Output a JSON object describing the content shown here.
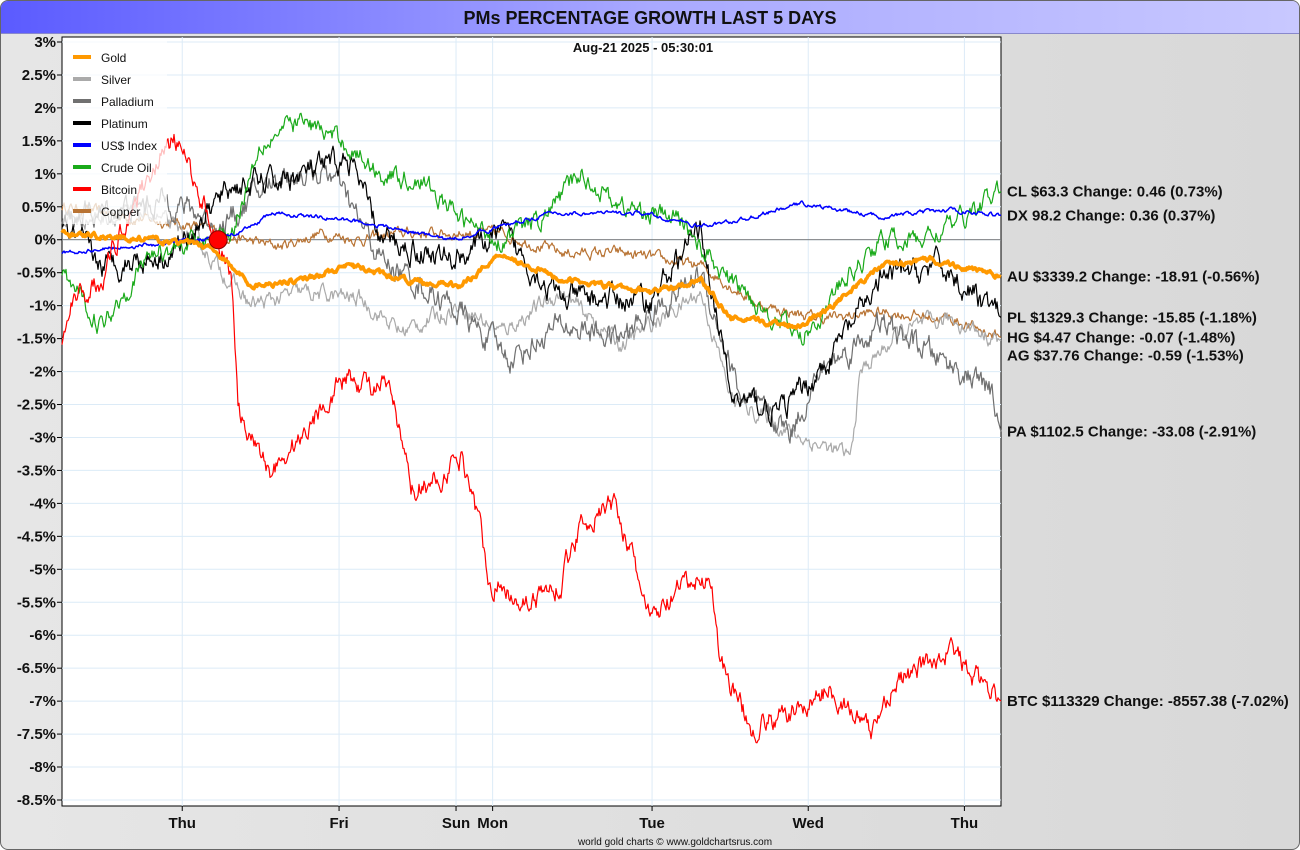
{
  "chart_data": {
    "type": "line",
    "title": "PMs PERCENTAGE GROWTH LAST 5 DAYS",
    "timestamp": "Aug-21  2025 - 05:30:01",
    "footer": "world gold charts © www.goldchartsrus.com",
    "xlabel": "",
    "ylabel": "",
    "x_units": "hours",
    "xlim": [
      0,
      143.7
    ],
    "ylim": [
      -8.5,
      3
    ],
    "grid": true,
    "legend_position": "top-left",
    "x_ticks": [
      {
        "label": "Thu",
        "x": 18.4
      },
      {
        "label": "Fri",
        "x": 42.4
      },
      {
        "label": "Sun",
        "x": 60.3
      },
      {
        "label": "Mon",
        "x": 65.9
      },
      {
        "label": "Tue",
        "x": 90.3
      },
      {
        "label": "Wed",
        "x": 114.2
      },
      {
        "label": "Thu",
        "x": 138.1
      }
    ],
    "y_ticks": [
      "3%",
      "2.5%",
      "2%",
      "1.5%",
      "1%",
      "0.5%",
      "0%",
      "-0.5%",
      "-1%",
      "-1.5%",
      "-2%",
      "-2.5%",
      "-3%",
      "-3.5%",
      "-4%",
      "-4.5%",
      "-5%",
      "-5.5%",
      "-6%",
      "-6.5%",
      "-7%",
      "-7.5%",
      "-8%",
      "-8.5%"
    ],
    "y_tick_values": [
      3,
      2.5,
      2,
      1.5,
      1,
      0.5,
      0,
      -0.5,
      -1,
      -1.5,
      -2,
      -2.5,
      -3,
      -3.5,
      -4,
      -4.5,
      -5,
      -5.5,
      -6,
      -6.5,
      -7,
      -7.5,
      -8,
      -8.5
    ],
    "marker": {
      "x": 23.9,
      "y": 0,
      "color": "#ff0000"
    },
    "series": [
      {
        "name": "Copper",
        "color": "#b87333",
        "width": 1.2,
        "noise": 0.08,
        "label": "HG $4.47  Change: -0.07 (-1.48%)",
        "points": [
          [
            0,
            0.5
          ],
          [
            13.6,
            0.3
          ],
          [
            21.3,
            0.2
          ],
          [
            27.4,
            0
          ],
          [
            33.5,
            -0.1
          ],
          [
            39.6,
            0.1
          ],
          [
            45.7,
            0
          ],
          [
            51.9,
            0.1
          ],
          [
            61,
            0.1
          ],
          [
            67.2,
            0.1
          ],
          [
            76.3,
            -0.2
          ],
          [
            85.5,
            -0.2
          ],
          [
            97.8,
            -0.4
          ],
          [
            106.9,
            -1.0
          ],
          [
            116.1,
            -1.2
          ],
          [
            125.3,
            -1.1
          ],
          [
            136,
            -1.2
          ],
          [
            143.7,
            -1.48
          ]
        ]
      },
      {
        "name": "Silver",
        "color": "#aaaaaa",
        "width": 1.2,
        "noise": 0.12,
        "label": "AG $37.76  Change: -0.59 (-1.53%)",
        "points": [
          [
            0,
            0.3
          ],
          [
            13.6,
            0.4
          ],
          [
            21.3,
            -0.1
          ],
          [
            28.9,
            -1.0
          ],
          [
            36.6,
            -0.8
          ],
          [
            45.7,
            -0.9
          ],
          [
            51.9,
            -1.4
          ],
          [
            61,
            -1.0
          ],
          [
            67.2,
            -1.4
          ],
          [
            76.3,
            -0.8
          ],
          [
            85.5,
            -1.6
          ],
          [
            97.8,
            -0.8
          ],
          [
            102.4,
            -2.4
          ],
          [
            113.1,
            -3.0
          ],
          [
            120.7,
            -3.3
          ],
          [
            122.2,
            -2.0
          ],
          [
            128.4,
            -1.4
          ],
          [
            136,
            -1.2
          ],
          [
            143.7,
            -1.53
          ]
        ]
      },
      {
        "name": "Palladium",
        "color": "#707070",
        "width": 1.2,
        "noise": 0.18,
        "label": "PA $1102.5  Change: -33.08 (-2.91%)",
        "points": [
          [
            0,
            0.3
          ],
          [
            16.7,
            0.6
          ],
          [
            24.3,
            0.2
          ],
          [
            33.5,
            1.0
          ],
          [
            41.2,
            1.0
          ],
          [
            48.8,
            -0.3
          ],
          [
            59.5,
            -1.0
          ],
          [
            68.7,
            -1.8
          ],
          [
            76.3,
            -1.3
          ],
          [
            85.5,
            -1.5
          ],
          [
            97.8,
            -0.5
          ],
          [
            103.9,
            -2.4
          ],
          [
            111.5,
            -2.9
          ],
          [
            116.1,
            -2.0
          ],
          [
            125.3,
            -1.3
          ],
          [
            136,
            -1.9
          ],
          [
            142.1,
            -2.3
          ],
          [
            143.7,
            -2.91
          ]
        ]
      },
      {
        "name": "Platinum",
        "color": "#000000",
        "width": 1.2,
        "noise": 0.18,
        "label": "PL $1329.3  Change: -15.85 (-1.18%)",
        "points": [
          [
            0,
            0.2
          ],
          [
            6,
            -0.4
          ],
          [
            16.7,
            -0.2
          ],
          [
            25.9,
            0.8
          ],
          [
            33.5,
            0.9
          ],
          [
            44.2,
            1.2
          ],
          [
            48.8,
            0
          ],
          [
            59.5,
            -0.3
          ],
          [
            67.2,
            0.1
          ],
          [
            76.3,
            -0.9
          ],
          [
            90.1,
            -0.9
          ],
          [
            97.8,
            0.2
          ],
          [
            102.4,
            -2.4
          ],
          [
            110,
            -2.6
          ],
          [
            116.1,
            -2.0
          ],
          [
            125.3,
            -0.6
          ],
          [
            134.5,
            -0.4
          ],
          [
            143.7,
            -1.18
          ]
        ]
      },
      {
        "name": "Crude Oil",
        "color": "#1aaa1a",
        "width": 1.2,
        "noise": 0.14,
        "label": "CL $63.3  Change: 0.46 (0.73%)",
        "points": [
          [
            0,
            -0.5
          ],
          [
            6,
            -1.3
          ],
          [
            13.6,
            -0.2
          ],
          [
            25.9,
            0.1
          ],
          [
            30.4,
            1.5
          ],
          [
            36.6,
            1.8
          ],
          [
            42.7,
            1.5
          ],
          [
            48.8,
            1.0
          ],
          [
            54.9,
            0.9
          ],
          [
            61,
            0.3
          ],
          [
            67.2,
            0
          ],
          [
            73.3,
            0.3
          ],
          [
            79.4,
            1.0
          ],
          [
            85.5,
            0.5
          ],
          [
            94.7,
            0.3
          ],
          [
            100.8,
            -0.5
          ],
          [
            106.9,
            -1.0
          ],
          [
            113.1,
            -1.5
          ],
          [
            119.2,
            -0.7
          ],
          [
            125.3,
            0
          ],
          [
            131.4,
            0
          ],
          [
            137.5,
            0.3
          ],
          [
            143.7,
            0.73
          ]
        ]
      },
      {
        "name": "US$ Index",
        "color": "#0000ff",
        "width": 1.5,
        "noise": 0.03,
        "label": "DX 98.2  Change: 0.36 (0.37%)",
        "points": [
          [
            0,
            -0.2
          ],
          [
            21.3,
            0
          ],
          [
            27.4,
            0.1
          ],
          [
            32,
            0.4
          ],
          [
            44.2,
            0.3
          ],
          [
            59.5,
            0
          ],
          [
            74.8,
            0.4
          ],
          [
            88.6,
            0.4
          ],
          [
            97.8,
            0.2
          ],
          [
            103.9,
            0.3
          ],
          [
            113.1,
            0.55
          ],
          [
            125.3,
            0.35
          ],
          [
            136,
            0.45
          ],
          [
            143.7,
            0.37
          ]
        ]
      },
      {
        "name": "Bitcoin",
        "color": "#ff0000",
        "width": 1.2,
        "noise": 0.16,
        "label": "BTC $113329  Change: -8557.38 (-7.02%)",
        "points": [
          [
            0,
            -1.6
          ],
          [
            1.4,
            -1.0
          ],
          [
            6,
            -0.6
          ],
          [
            10.6,
            0.5
          ],
          [
            15.1,
            1.3
          ],
          [
            17.4,
            1.5
          ],
          [
            19.7,
            1.0
          ],
          [
            22.8,
            0.3
          ],
          [
            25.9,
            -0.5
          ],
          [
            26.9,
            -2.5
          ],
          [
            28.2,
            -3.0
          ],
          [
            32,
            -3.5
          ],
          [
            36.6,
            -3.0
          ],
          [
            41.2,
            -2.3
          ],
          [
            43.5,
            -2.1
          ],
          [
            50.3,
            -2.3
          ],
          [
            53.4,
            -3.8
          ],
          [
            58,
            -3.6
          ],
          [
            61,
            -3.3
          ],
          [
            62.6,
            -3.7
          ],
          [
            65.6,
            -5.2
          ],
          [
            71.8,
            -5.5
          ],
          [
            76.3,
            -5.2
          ],
          [
            79.4,
            -4.3
          ],
          [
            84.8,
            -4.0
          ],
          [
            90.1,
            -5.8
          ],
          [
            94.7,
            -5.3
          ],
          [
            99.3,
            -5.1
          ],
          [
            100.8,
            -6.4
          ],
          [
            105.4,
            -7.4
          ],
          [
            111.5,
            -7.2
          ],
          [
            117.7,
            -6.8
          ],
          [
            123.8,
            -7.5
          ],
          [
            126.8,
            -6.8
          ],
          [
            131.4,
            -6.5
          ],
          [
            136,
            -6.2
          ],
          [
            139.1,
            -6.6
          ],
          [
            143.7,
            -7.0
          ]
        ]
      },
      {
        "name": "Gold",
        "color": "#ff9900",
        "width": 3.5,
        "noise": 0.04,
        "label": "AU $3339.2  Change: -18.91 (-0.56%)",
        "points": [
          [
            0,
            0.1
          ],
          [
            13.6,
            0
          ],
          [
            22.8,
            -0.1
          ],
          [
            28.9,
            -0.7
          ],
          [
            36.6,
            -0.6
          ],
          [
            44.2,
            -0.4
          ],
          [
            51.9,
            -0.6
          ],
          [
            61,
            -0.7
          ],
          [
            67.2,
            -0.2
          ],
          [
            76.3,
            -0.6
          ],
          [
            90.1,
            -0.8
          ],
          [
            97.8,
            -0.6
          ],
          [
            102.4,
            -1.2
          ],
          [
            113.1,
            -1.3
          ],
          [
            119.2,
            -0.9
          ],
          [
            125.3,
            -0.4
          ],
          [
            133,
            -0.3
          ],
          [
            143.7,
            -0.56
          ]
        ]
      }
    ],
    "legend": [
      "Gold",
      "Silver",
      "Palladium",
      "Platinum",
      "US$ Index",
      "Crude Oil",
      "Bitcoin",
      "Copper"
    ]
  }
}
